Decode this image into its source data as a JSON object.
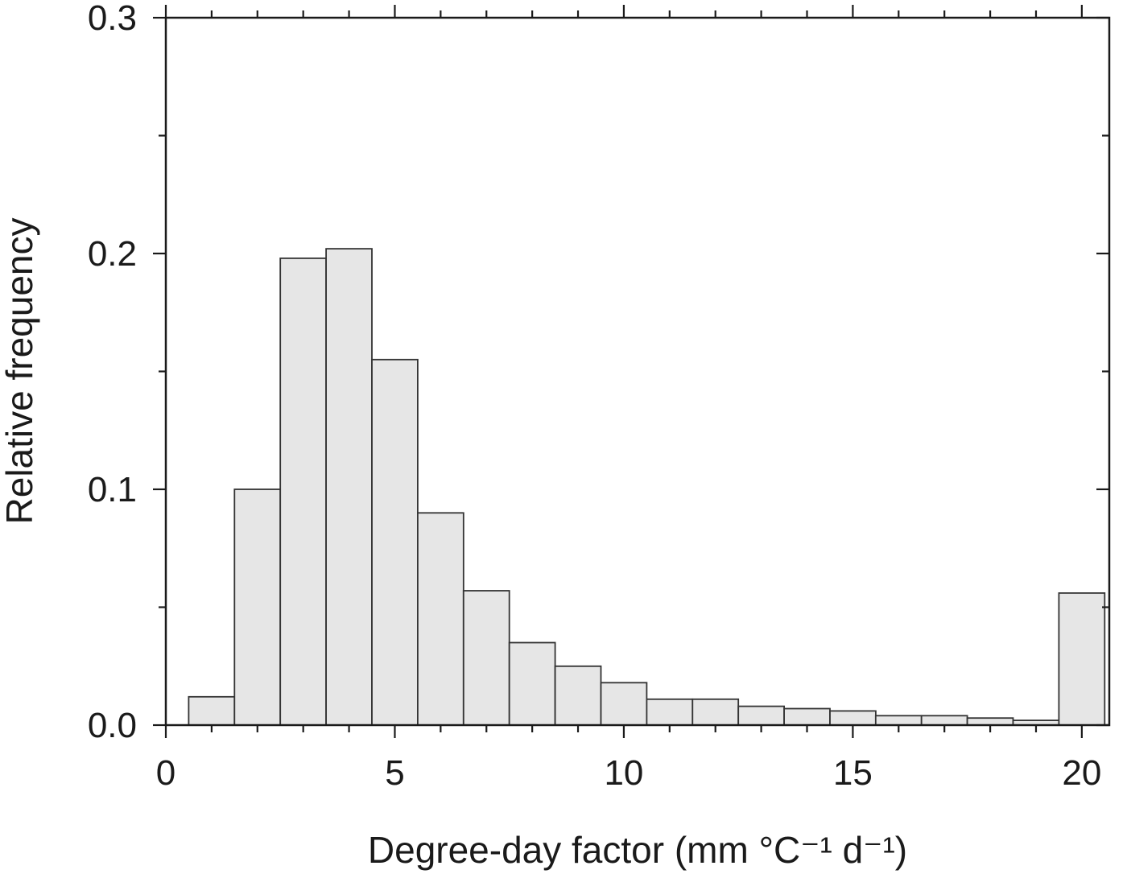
{
  "chart_data": {
    "type": "bar",
    "xlabel": "Degree-day factor (mm °C⁻¹ d⁻¹)",
    "ylabel": "Relative frequency",
    "xlim": [
      0,
      20.6
    ],
    "ylim": [
      0,
      0.3
    ],
    "x_ticks": [
      0,
      5,
      10,
      15,
      20
    ],
    "y_ticks": [
      0.0,
      0.1,
      0.2,
      0.3
    ],
    "x_tick_labels": [
      "0",
      "5",
      "10",
      "15",
      "20"
    ],
    "y_tick_labels": [
      "0.0",
      "0.1",
      "0.2",
      "0.3"
    ],
    "x_minor_step": 1,
    "y_minor_step": 0.05,
    "bin_width": 1,
    "bins": [
      {
        "center": 1,
        "value": 0.012
      },
      {
        "center": 2,
        "value": 0.1
      },
      {
        "center": 3,
        "value": 0.198
      },
      {
        "center": 4,
        "value": 0.202
      },
      {
        "center": 5,
        "value": 0.155
      },
      {
        "center": 6,
        "value": 0.09
      },
      {
        "center": 7,
        "value": 0.057
      },
      {
        "center": 8,
        "value": 0.035
      },
      {
        "center": 9,
        "value": 0.025
      },
      {
        "center": 10,
        "value": 0.018
      },
      {
        "center": 11,
        "value": 0.011
      },
      {
        "center": 12,
        "value": 0.011
      },
      {
        "center": 13,
        "value": 0.008
      },
      {
        "center": 14,
        "value": 0.007
      },
      {
        "center": 15,
        "value": 0.006
      },
      {
        "center": 16,
        "value": 0.004
      },
      {
        "center": 17,
        "value": 0.004
      },
      {
        "center": 18,
        "value": 0.003
      },
      {
        "center": 19,
        "value": 0.002
      },
      {
        "center": 20,
        "value": 0.056
      }
    ],
    "grid": false,
    "bar_fill": "#e6e6e6",
    "bar_stroke": "#333333",
    "axis_color": "#1a1a1a"
  }
}
